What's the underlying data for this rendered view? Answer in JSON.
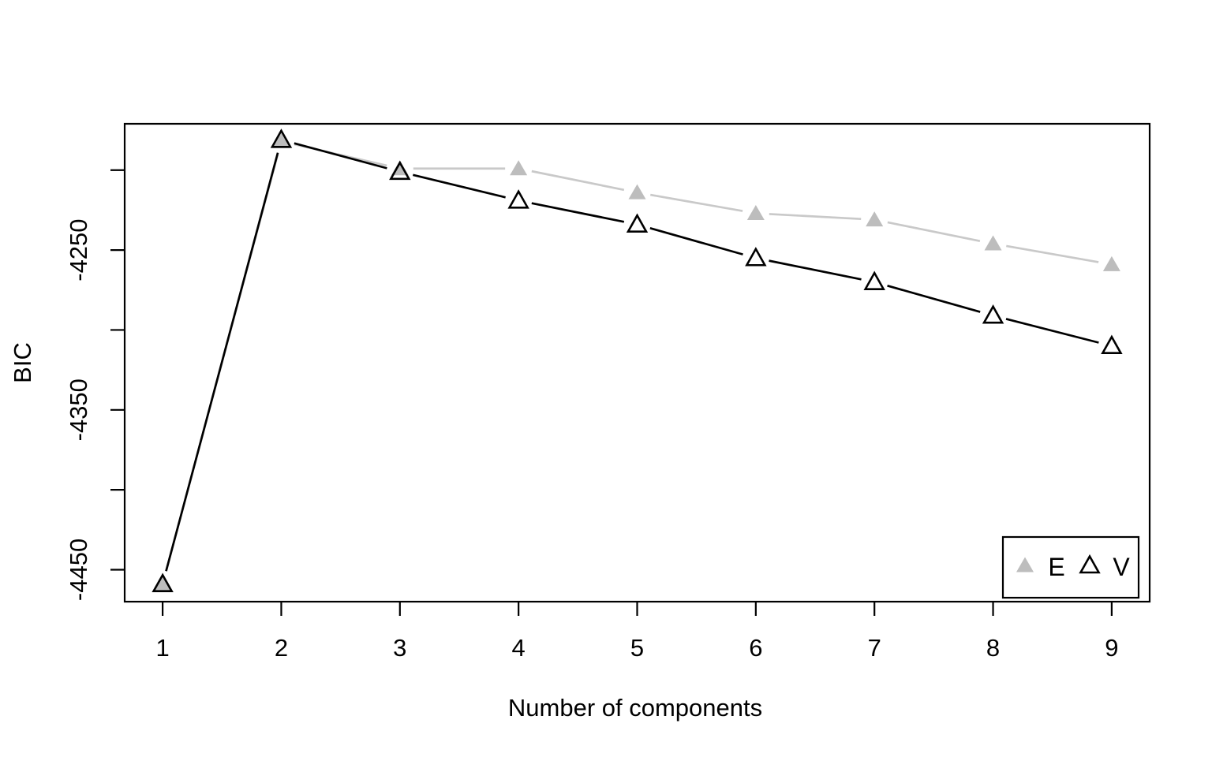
{
  "figure": {
    "background": "#ffffff",
    "axis_color": "#000000"
  },
  "chart_data": {
    "type": "line",
    "title": "",
    "xlabel": "Number of components",
    "ylabel": "BIC",
    "x": [
      1,
      2,
      3,
      4,
      5,
      6,
      7,
      8,
      9
    ],
    "series": [
      {
        "name": "E",
        "marker": "filled-triangle",
        "marker_color": "#BDBDBD",
        "line_color": "#C9C9C9",
        "values": [
          -4459,
          -4182,
          -4199,
          -4199,
          -4214,
          -4227,
          -4231,
          -4246,
          -4259
        ]
      },
      {
        "name": "V",
        "marker": "open-triangle",
        "marker_color": "#000000",
        "line_color": "#000000",
        "values": [
          -4459,
          -4181,
          -4201,
          -4219,
          -4234,
          -4255,
          -4270,
          -4291,
          -4310
        ]
      }
    ],
    "xlim": [
      0.68,
      9.32
    ],
    "ylim": [
      -4470,
      -4171
    ],
    "x_ticks": [
      1,
      2,
      3,
      4,
      5,
      6,
      7,
      8,
      9
    ],
    "y_ticks": [
      {
        "value": -4200,
        "label": ""
      },
      {
        "value": -4250,
        "label": "-4250"
      },
      {
        "value": -4300,
        "label": ""
      },
      {
        "value": -4350,
        "label": "-4350"
      },
      {
        "value": -4400,
        "label": ""
      },
      {
        "value": -4450,
        "label": "-4450"
      }
    ],
    "grid": false,
    "legend_position": "bottom-right"
  }
}
